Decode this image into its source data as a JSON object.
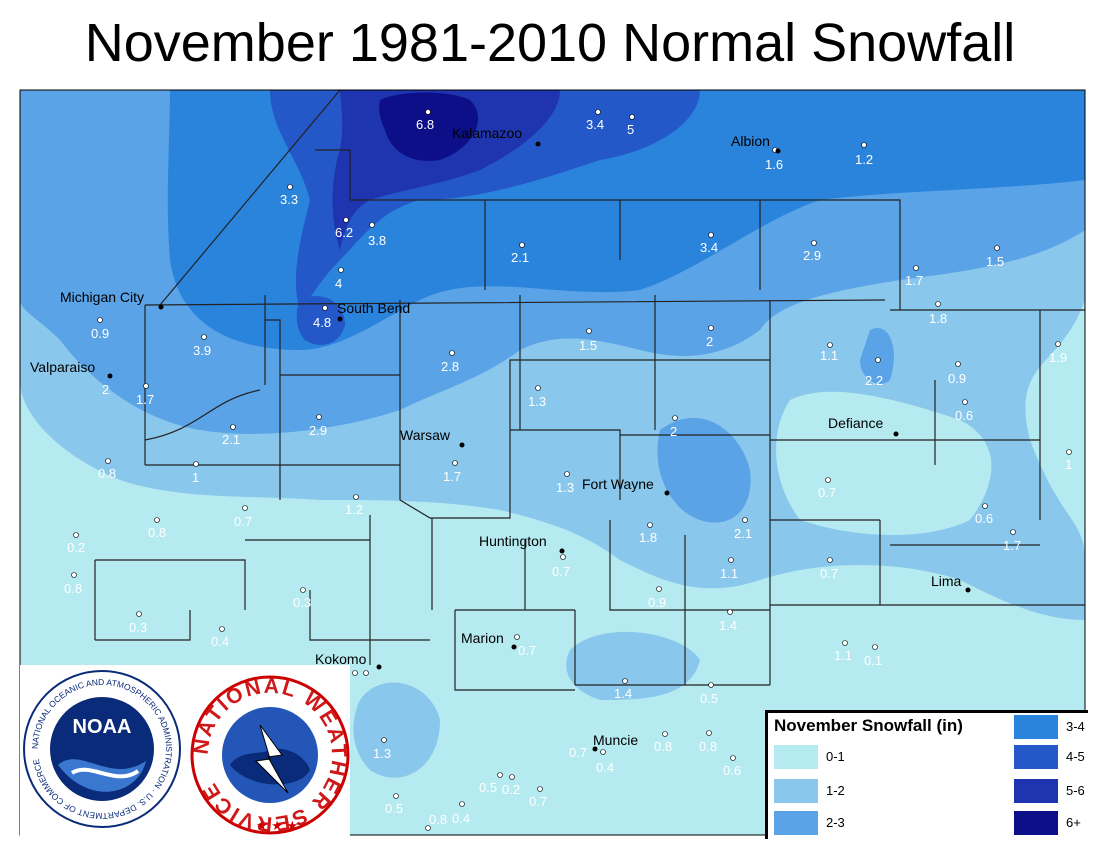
{
  "title": "November 1981-2010 Normal Snowfall",
  "legend": {
    "title": "November Snowfall (in)",
    "items": [
      {
        "label": "0-1",
        "color": "#b5eaf0"
      },
      {
        "label": "1-2",
        "color": "#8ac7ec"
      },
      {
        "label": "2-3",
        "color": "#5aa3e6"
      },
      {
        "label": "3-4",
        "color": "#2a84dc"
      },
      {
        "label": "4-5",
        "color": "#2457c8"
      },
      {
        "label": "5-6",
        "color": "#1f35b0"
      },
      {
        "label": "6+",
        "color": "#0c0f88"
      }
    ]
  },
  "cities": [
    "Kalamazoo",
    "Albion",
    "Michigan City",
    "South Bend",
    "Valparaiso",
    "Warsaw",
    "Defiance",
    "Fort Wayne",
    "Huntington",
    "Lima",
    "Marion",
    "Kokomo",
    "Muncie"
  ],
  "values": [
    "6.8",
    "3.4",
    "5",
    "1.6",
    "1.2",
    "3.3",
    "6.2",
    "3.8",
    "4",
    "2.1",
    "3.4",
    "2.9",
    "1.7",
    "1.5",
    "4.8",
    "0.9",
    "3.9",
    "1.8",
    "2.8",
    "1.5",
    "2",
    "1.1",
    "2.2",
    "1.9",
    "2",
    "1.7",
    "1.3",
    "2.1",
    "2.9",
    "0.9",
    "0.6",
    "2",
    "1",
    "0.8",
    "1",
    "1.7",
    "1.3",
    "0.7",
    "0.7",
    "0.8",
    "1.2",
    "0.6",
    "0.2",
    "1.8",
    "2.1",
    "1.7",
    "0.8",
    "0.7",
    "1.1",
    "0.7",
    "0.3",
    "0.3",
    "0.9",
    "0.4",
    "1.4",
    "0.7",
    "1.1",
    "0.1",
    "1.4",
    "0.5",
    "1.3",
    "0.7",
    "0.8",
    "0.8",
    "0.4",
    "0.6",
    "0.5",
    "0.2",
    "0.7",
    "0.5",
    "0.8",
    "0.4"
  ],
  "logos": {
    "noaa": "NOAA",
    "noaa_ring": "NATIONAL OCEANIC AND ATMOSPHERIC ADMINISTRATION · U.S. DEPARTMENT OF COMMERCE",
    "nws_ring": "NATIONAL WEATHER SERVICE"
  }
}
